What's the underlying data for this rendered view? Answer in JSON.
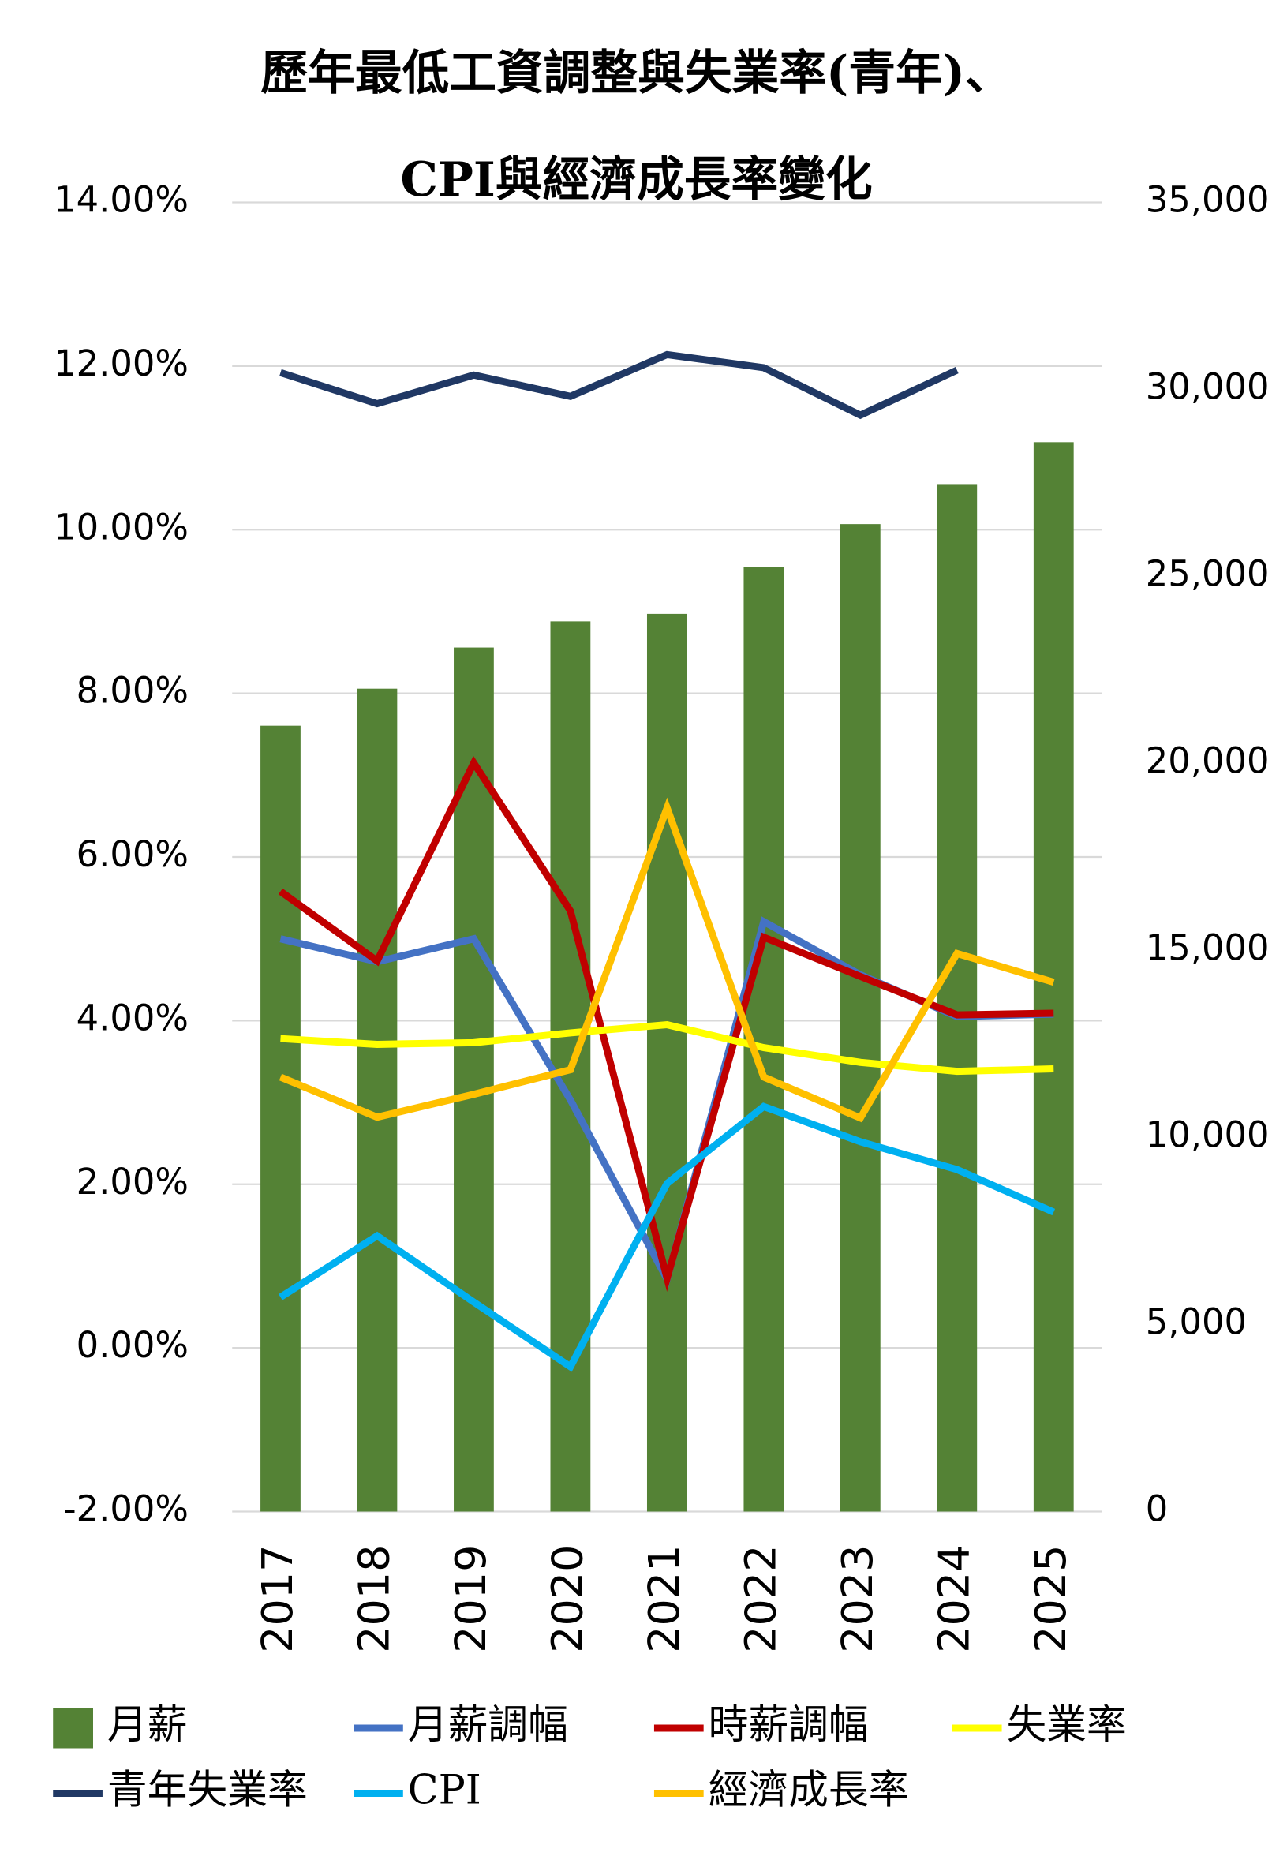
{
  "chart_data": {
    "type": "combo",
    "title": [
      "歷年最低工資調整與失業率(青年)、",
      "CPI與經濟成長率變化"
    ],
    "categories": [
      "2017",
      "2018",
      "2019",
      "2020",
      "2021",
      "2022",
      "2023",
      "2024",
      "2025"
    ],
    "series": [
      {
        "name": "月薪",
        "type": "bar",
        "axis": "y2",
        "color": "#548235",
        "values": [
          21009,
          22000,
          23100,
          23800,
          24000,
          25250,
          26400,
          27470,
          28590
        ]
      },
      {
        "name": "月薪調幅",
        "type": "line",
        "color": "#4472c4",
        "values": [
          5.0,
          4.72,
          5.0,
          3.03,
          0.84,
          5.21,
          4.56,
          4.05,
          4.08
        ]
      },
      {
        "name": "時薪調幅",
        "type": "line",
        "color": "#c00000",
        "values": [
          5.58,
          4.73,
          7.15,
          5.34,
          0.85,
          5.02,
          4.54,
          4.07,
          4.09
        ]
      },
      {
        "name": "失業率",
        "type": "line",
        "color": "#ffff00",
        "values": [
          3.78,
          3.71,
          3.73,
          3.85,
          3.95,
          3.67,
          3.49,
          3.38,
          3.41
        ]
      },
      {
        "name": "青年失業率",
        "type": "line",
        "color": "#203864",
        "values": [
          11.92,
          11.54,
          11.89,
          11.63,
          12.14,
          11.98,
          11.4,
          11.95,
          null
        ]
      },
      {
        "name": "CPI",
        "type": "line",
        "color": "#00b0f0",
        "values": [
          0.62,
          1.37,
          0.56,
          -0.23,
          2.01,
          2.95,
          2.52,
          2.18,
          1.66
        ]
      },
      {
        "name": "經濟成長率",
        "type": "line",
        "color": "#ffc000",
        "values": [
          3.31,
          2.82,
          3.1,
          3.4,
          6.6,
          3.31,
          2.81,
          4.82,
          4.47
        ]
      }
    ],
    "ylim": [
      -2,
      14
    ],
    "yticks": [
      {
        "value": -2,
        "label": "-2.00%"
      },
      {
        "value": 0,
        "label": "0.00%"
      },
      {
        "value": 2,
        "label": "2.00%"
      },
      {
        "value": 4,
        "label": "4.00%"
      },
      {
        "value": 6,
        "label": "6.00%"
      },
      {
        "value": 8,
        "label": "8.00%"
      },
      {
        "value": 10,
        "label": "10.00%"
      },
      {
        "value": 12,
        "label": "12.00%"
      },
      {
        "value": 14,
        "label": "14.00%"
      }
    ],
    "y2lim": [
      0,
      35000
    ],
    "y2ticks": [
      0,
      {
        "value": 5000,
        "label": "5,000"
      },
      {
        "value": 10000,
        "label": "10,000"
      },
      {
        "value": 15000,
        "label": "15,000"
      },
      {
        "value": 20000,
        "label": "20,000"
      },
      {
        "value": 25000,
        "label": "25,000"
      },
      {
        "value": 30000,
        "label": "30,000"
      },
      {
        "value": 35000,
        "label": "35,000"
      }
    ],
    "grid": true
  }
}
